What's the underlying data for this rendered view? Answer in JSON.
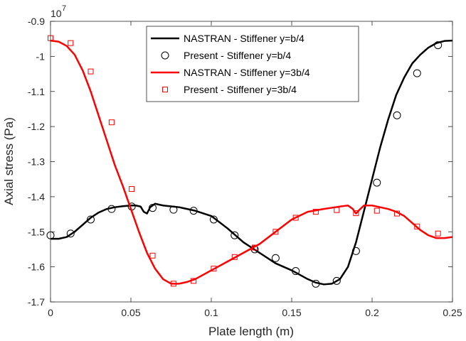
{
  "chart_data": {
    "type": "line",
    "xlabel": "Plate length (m)",
    "ylabel": "Axial stress (Pa)",
    "y_exponent_base": "10",
    "y_exponent": "7",
    "xlim": [
      0,
      0.25
    ],
    "ylim": [
      -1.7,
      -0.9
    ],
    "x_ticks": [
      0,
      0.05,
      0.1,
      0.15,
      0.2,
      0.25
    ],
    "x_tick_labels": [
      "0",
      "0.05",
      "0.1",
      "0.15",
      "0.2",
      "0.25"
    ],
    "y_ticks": [
      -1.7,
      -1.6,
      -1.5,
      -1.4,
      -1.3,
      -1.2,
      -1.1,
      -1.0,
      -0.9
    ],
    "y_tick_labels": [
      "-1.7",
      "-1.6",
      "-1.5",
      "-1.4",
      "-1.3",
      "-1.2",
      "-1.1",
      "-1",
      "-0.9"
    ],
    "grid": false,
    "legend_position": "top-center",
    "series": [
      {
        "name": "NASTRAN - Stiffener y=b/4",
        "kind": "line",
        "color": "#000000",
        "x": [
          0,
          0.005,
          0.01,
          0.015,
          0.02,
          0.025,
          0.03,
          0.035,
          0.04,
          0.045,
          0.05,
          0.053,
          0.056,
          0.058,
          0.06,
          0.062,
          0.065,
          0.07,
          0.08,
          0.09,
          0.1,
          0.11,
          0.12,
          0.13,
          0.14,
          0.15,
          0.16,
          0.165,
          0.17,
          0.175,
          0.18,
          0.185,
          0.19,
          0.195,
          0.2,
          0.205,
          0.21,
          0.215,
          0.22,
          0.225,
          0.23,
          0.235,
          0.24,
          0.245,
          0.25
        ],
        "y": [
          -1.52,
          -1.52,
          -1.515,
          -1.5,
          -1.48,
          -1.46,
          -1.445,
          -1.435,
          -1.43,
          -1.427,
          -1.425,
          -1.425,
          -1.428,
          -1.443,
          -1.448,
          -1.43,
          -1.42,
          -1.425,
          -1.43,
          -1.44,
          -1.455,
          -1.49,
          -1.53,
          -1.56,
          -1.59,
          -1.61,
          -1.635,
          -1.645,
          -1.65,
          -1.648,
          -1.635,
          -1.6,
          -1.53,
          -1.44,
          -1.35,
          -1.26,
          -1.18,
          -1.11,
          -1.06,
          -1.02,
          -0.995,
          -0.975,
          -0.962,
          -0.956,
          -0.955
        ]
      },
      {
        "name": "Present - Stiffener y=b/4",
        "kind": "marker-circle",
        "color": "#000000",
        "x": [
          0,
          0.0125,
          0.025,
          0.038,
          0.0505,
          0.0635,
          0.0765,
          0.089,
          0.1015,
          0.1145,
          0.127,
          0.14,
          0.1525,
          0.165,
          0.178,
          0.19,
          0.203,
          0.2155,
          0.228,
          0.241
        ],
        "y": [
          -1.51,
          -1.505,
          -1.465,
          -1.435,
          -1.428,
          -1.432,
          -1.437,
          -1.44,
          -1.465,
          -1.51,
          -1.55,
          -1.575,
          -1.612,
          -1.648,
          -1.64,
          -1.555,
          -1.36,
          -1.168,
          -1.048,
          -0.968
        ]
      },
      {
        "name": "NASTRAN - Stiffener y=3b/4",
        "kind": "line",
        "color": "#ff0000",
        "x": [
          0,
          0.005,
          0.01,
          0.015,
          0.02,
          0.025,
          0.03,
          0.035,
          0.04,
          0.045,
          0.05,
          0.055,
          0.06,
          0.065,
          0.07,
          0.075,
          0.08,
          0.085,
          0.09,
          0.1,
          0.11,
          0.12,
          0.13,
          0.14,
          0.15,
          0.16,
          0.17,
          0.18,
          0.185,
          0.188,
          0.19,
          0.192,
          0.195,
          0.2,
          0.205,
          0.21,
          0.215,
          0.22,
          0.225,
          0.23,
          0.235,
          0.24,
          0.245,
          0.25
        ],
        "y": [
          -0.955,
          -0.958,
          -0.97,
          -0.995,
          -1.04,
          -1.1,
          -1.17,
          -1.24,
          -1.31,
          -1.37,
          -1.435,
          -1.5,
          -1.56,
          -1.605,
          -1.635,
          -1.648,
          -1.648,
          -1.643,
          -1.635,
          -1.61,
          -1.585,
          -1.56,
          -1.535,
          -1.5,
          -1.465,
          -1.443,
          -1.435,
          -1.428,
          -1.425,
          -1.435,
          -1.448,
          -1.438,
          -1.425,
          -1.425,
          -1.43,
          -1.435,
          -1.443,
          -1.455,
          -1.475,
          -1.495,
          -1.51,
          -1.518,
          -1.518,
          -1.515
        ]
      },
      {
        "name": "Present - Stiffener y=3b/4",
        "kind": "marker-square",
        "color": "#ff0000",
        "x": [
          0,
          0.0125,
          0.025,
          0.038,
          0.0505,
          0.0635,
          0.0765,
          0.089,
          0.1015,
          0.1145,
          0.127,
          0.14,
          0.1525,
          0.165,
          0.178,
          0.19,
          0.203,
          0.2155,
          0.228,
          0.241
        ],
        "y": [
          -0.948,
          -0.962,
          -1.043,
          -1.188,
          -1.378,
          -1.568,
          -1.648,
          -1.64,
          -1.605,
          -1.572,
          -1.545,
          -1.5,
          -1.46,
          -1.443,
          -1.438,
          -1.447,
          -1.44,
          -1.448,
          -1.485,
          -1.505
        ]
      }
    ]
  }
}
